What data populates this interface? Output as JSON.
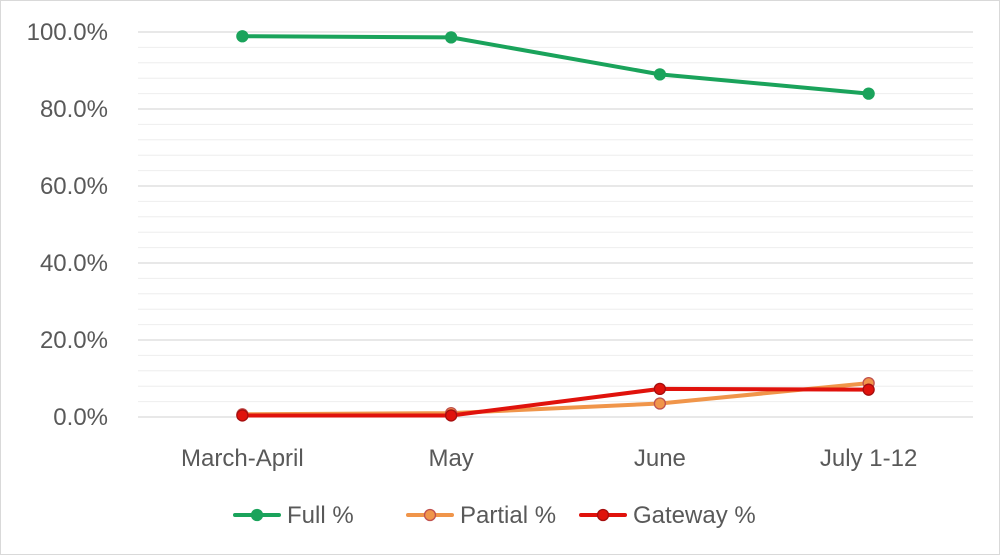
{
  "chart_data": {
    "type": "line",
    "categories": [
      "March-April",
      "May",
      "June",
      "July 1-12"
    ],
    "series": [
      {
        "name": "Full %",
        "values": [
          98.9,
          98.6,
          89.0,
          84.0
        ],
        "color": "#1aa35b",
        "marker_fill": "#1aa35b",
        "marker_stroke": "#1aa35b"
      },
      {
        "name": "Partial %",
        "values": [
          0.7,
          1.0,
          3.5,
          8.8
        ],
        "color": "#f0954a",
        "marker_fill": "#f0954a",
        "marker_stroke": "#c0504d"
      },
      {
        "name": "Gateway %",
        "values": [
          0.4,
          0.4,
          7.3,
          7.1
        ],
        "color": "#e0120c",
        "marker_fill": "#e0120c",
        "marker_stroke": "#a50e0e"
      }
    ],
    "y_ticks": [
      "0.0%",
      "20.0%",
      "40.0%",
      "60.0%",
      "80.0%",
      "100.0%"
    ],
    "ylim": [
      0,
      100
    ],
    "y_major_step": 20,
    "y_minor_step": 4,
    "grid": true,
    "legend_position": "bottom",
    "title": "",
    "xlabel": "",
    "ylabel": ""
  }
}
